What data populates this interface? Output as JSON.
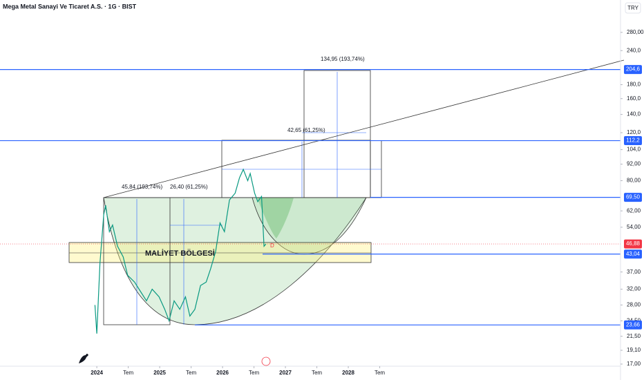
{
  "chart_data": {
    "type": "line",
    "title": "Mega Metal Sanayi Ve Ticaret A.S. · 1G · BIST",
    "currency": "TRY",
    "log_scale": true,
    "color": "#089981",
    "x": [
      2023.97,
      2024.0,
      2024.05,
      2024.11,
      2024.14,
      2024.2,
      2024.25,
      2024.33,
      2024.42,
      2024.49,
      2024.6,
      2024.71,
      2024.79,
      2024.88,
      2024.99,
      2025.08,
      2025.15,
      2025.23,
      2025.32,
      2025.41,
      2025.48,
      2025.56,
      2025.65,
      2025.74,
      2025.81,
      2025.89,
      2025.96,
      2026.03,
      2026.11,
      2026.2,
      2026.27,
      2026.33,
      2026.4,
      2026.44,
      2026.51,
      2026.56,
      2026.62,
      2026.66,
      2026.69
    ],
    "values": [
      28,
      22,
      40,
      60,
      65,
      52,
      55,
      46,
      42,
      36,
      34,
      31,
      29,
      32,
      30,
      27,
      24.5,
      29,
      27,
      30,
      25.5,
      27,
      33,
      34,
      38,
      44,
      56,
      52,
      68,
      72,
      82,
      88,
      80,
      85,
      72,
      67,
      70,
      46,
      46.88
    ],
    "xlim": [
      2022.46,
      2032.33
    ],
    "xticks": [
      {
        "value": 2024,
        "label": "2024"
      },
      {
        "value": 2024.5,
        "label": "Tem"
      },
      {
        "value": 2025,
        "label": "2025"
      },
      {
        "value": 2025.5,
        "label": "Tem"
      },
      {
        "value": 2026,
        "label": "2026"
      },
      {
        "value": 2026.5,
        "label": "Tem"
      },
      {
        "value": 2027,
        "label": "2027"
      },
      {
        "value": 2027.5,
        "label": "Tem"
      },
      {
        "value": 2028,
        "label": "2028"
      },
      {
        "value": 2028.5,
        "label": "Tem"
      }
    ],
    "ylim": [
      16.7,
      368
    ],
    "yticks": [
      {
        "value": 280,
        "label": "280,00"
      },
      {
        "value": 240,
        "label": "240,0"
      },
      {
        "value": 180,
        "label": "180,0"
      },
      {
        "value": 160,
        "label": "160,0"
      },
      {
        "value": 140,
        "label": "140,0"
      },
      {
        "value": 120,
        "label": "120,0"
      },
      {
        "value": 104,
        "label": "104,0"
      },
      {
        "value": 92,
        "label": "92,00"
      },
      {
        "value": 80,
        "label": "80,00"
      },
      {
        "value": 62,
        "label": "62,00"
      },
      {
        "value": 54,
        "label": "54,00"
      },
      {
        "value": 37,
        "label": "37,00"
      },
      {
        "value": 32,
        "label": "32,00"
      },
      {
        "value": 28,
        "label": "28,00"
      },
      {
        "value": 24.5,
        "label": "24,50"
      },
      {
        "value": 21.5,
        "label": "21,50"
      },
      {
        "value": 19.1,
        "label": "19,10"
      },
      {
        "value": 17,
        "label": "17,00"
      }
    ],
    "levels": [
      {
        "value": 204.6,
        "label": "204,6",
        "color": "#2962ff"
      },
      {
        "value": 112.2,
        "label": "112,2",
        "color": "#2962ff"
      },
      {
        "value": 69.5,
        "label": "69,50",
        "color": "#2962ff"
      },
      {
        "value": 46.88,
        "label": "46,88",
        "color": "#f23645"
      },
      {
        "value": 43.04,
        "label": "43,04",
        "color": "#2962ff"
      },
      {
        "value": 23.66,
        "label": "23,66",
        "color": "#2962ff"
      }
    ],
    "annotations": [
      "45,84 (193,74%)",
      "26,40 (61,25%)",
      "42,65 (61,25%)",
      "134,95 (193,74%)",
      "MALİYET BÖLGESİ",
      "D"
    ]
  }
}
